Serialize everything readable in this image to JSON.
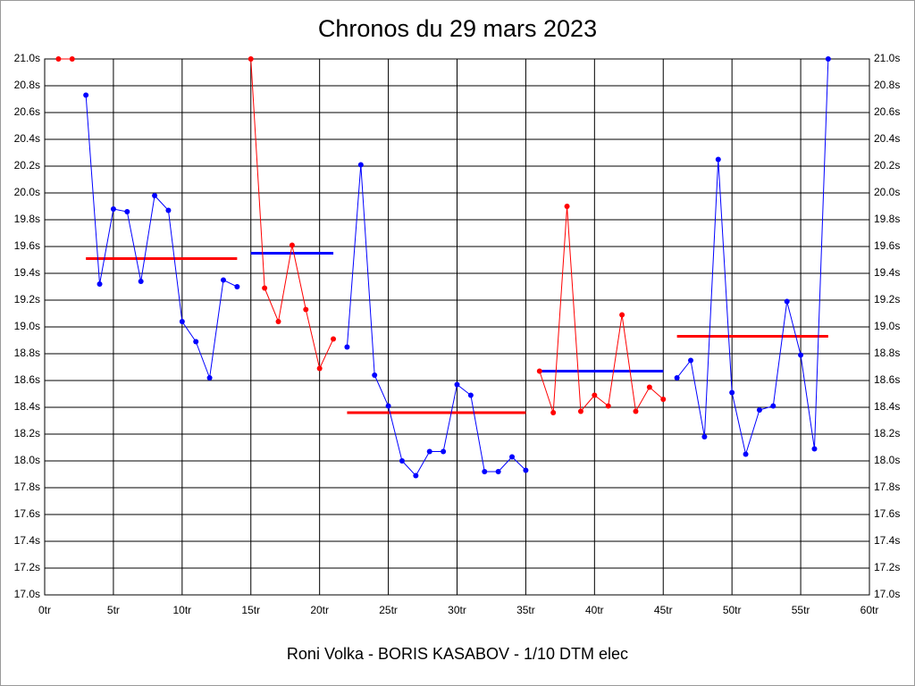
{
  "chart_data": {
    "type": "line",
    "title": "Chronos du 29 mars 2023",
    "subtitle": "Roni Volka - BORIS KASABOV - 1/10 DTM elec",
    "xlim": [
      0,
      60
    ],
    "xticks": [
      {
        "value": 0,
        "label": "0tr"
      },
      {
        "value": 5,
        "label": "5tr"
      },
      {
        "value": 10,
        "label": "10tr"
      },
      {
        "value": 15,
        "label": "15tr"
      },
      {
        "value": 20,
        "label": "20tr"
      },
      {
        "value": 25,
        "label": "25tr"
      },
      {
        "value": 30,
        "label": "30tr"
      },
      {
        "value": 35,
        "label": "35tr"
      },
      {
        "value": 40,
        "label": "40tr"
      },
      {
        "value": 45,
        "label": "45tr"
      },
      {
        "value": 50,
        "label": "50tr"
      },
      {
        "value": 55,
        "label": "55tr"
      },
      {
        "value": 60,
        "label": "60tr"
      }
    ],
    "ylim": [
      17.0,
      21.0
    ],
    "yticks": [
      {
        "value": 17.0,
        "label": "17.0s"
      },
      {
        "value": 17.2,
        "label": "17.2s"
      },
      {
        "value": 17.4,
        "label": "17.4s"
      },
      {
        "value": 17.6,
        "label": "17.6s"
      },
      {
        "value": 17.8,
        "label": "17.8s"
      },
      {
        "value": 18.0,
        "label": "18.0s"
      },
      {
        "value": 18.2,
        "label": "18.2s"
      },
      {
        "value": 18.4,
        "label": "18.4s"
      },
      {
        "value": 18.6,
        "label": "18.6s"
      },
      {
        "value": 18.8,
        "label": "18.8s"
      },
      {
        "value": 19.0,
        "label": "19.0s"
      },
      {
        "value": 19.2,
        "label": "19.2s"
      },
      {
        "value": 19.4,
        "label": "19.4s"
      },
      {
        "value": 19.6,
        "label": "19.6s"
      },
      {
        "value": 19.8,
        "label": "19.8s"
      },
      {
        "value": 20.0,
        "label": "20.0s"
      },
      {
        "value": 20.2,
        "label": "20.2s"
      },
      {
        "value": 20.4,
        "label": "20.4s"
      },
      {
        "value": 20.6,
        "label": "20.6s"
      },
      {
        "value": 20.8,
        "label": "20.8s"
      },
      {
        "value": 21.0,
        "label": "21.0s"
      }
    ],
    "grid": true,
    "series": [
      {
        "color": "#ff0000",
        "x": [
          1,
          2
        ],
        "values": [
          21.0,
          21.0
        ]
      },
      {
        "color": "#0000ff",
        "x": [
          3,
          4,
          5,
          6,
          7,
          8,
          9,
          10,
          11,
          12,
          13,
          14
        ],
        "values": [
          20.73,
          19.32,
          19.88,
          19.86,
          19.34,
          19.98,
          19.87,
          19.04,
          18.89,
          18.62,
          19.35,
          19.3
        ]
      },
      {
        "color": "#ff0000",
        "x": [
          15,
          16,
          17,
          18,
          19,
          20,
          21
        ],
        "values": [
          21.0,
          19.29,
          19.04,
          19.61,
          19.13,
          18.69,
          18.91
        ]
      },
      {
        "color": "#0000ff",
        "x": [
          22,
          23,
          24,
          25,
          26,
          27,
          28,
          29,
          30,
          31,
          32,
          33,
          34,
          35
        ],
        "values": [
          18.85,
          20.21,
          18.64,
          18.41,
          18.0,
          17.89,
          18.07,
          18.07,
          18.57,
          18.49,
          17.92,
          17.92,
          18.03,
          17.93
        ]
      },
      {
        "color": "#ff0000",
        "x": [
          36,
          37,
          38,
          39,
          40,
          41,
          42,
          43,
          44,
          45
        ],
        "values": [
          18.67,
          18.36,
          19.9,
          18.37,
          18.49,
          18.41,
          19.09,
          18.37,
          18.55,
          18.46
        ]
      },
      {
        "color": "#0000ff",
        "x": [
          46,
          47,
          48,
          49,
          50,
          51,
          52,
          53,
          54,
          55,
          56,
          57
        ],
        "values": [
          18.62,
          18.75,
          18.18,
          20.25,
          18.51,
          18.05,
          18.38,
          18.41,
          19.19,
          18.79,
          18.09,
          21.0
        ]
      }
    ],
    "averages": [
      {
        "color": "#ff0000",
        "x": [
          3,
          14
        ],
        "value": 19.51
      },
      {
        "color": "#0000ff",
        "x": [
          15,
          21
        ],
        "value": 19.55
      },
      {
        "color": "#ff0000",
        "x": [
          22,
          35
        ],
        "value": 18.36
      },
      {
        "color": "#0000ff",
        "x": [
          36,
          45
        ],
        "value": 18.67
      },
      {
        "color": "#ff0000",
        "x": [
          46,
          57
        ],
        "value": 18.93
      }
    ]
  }
}
